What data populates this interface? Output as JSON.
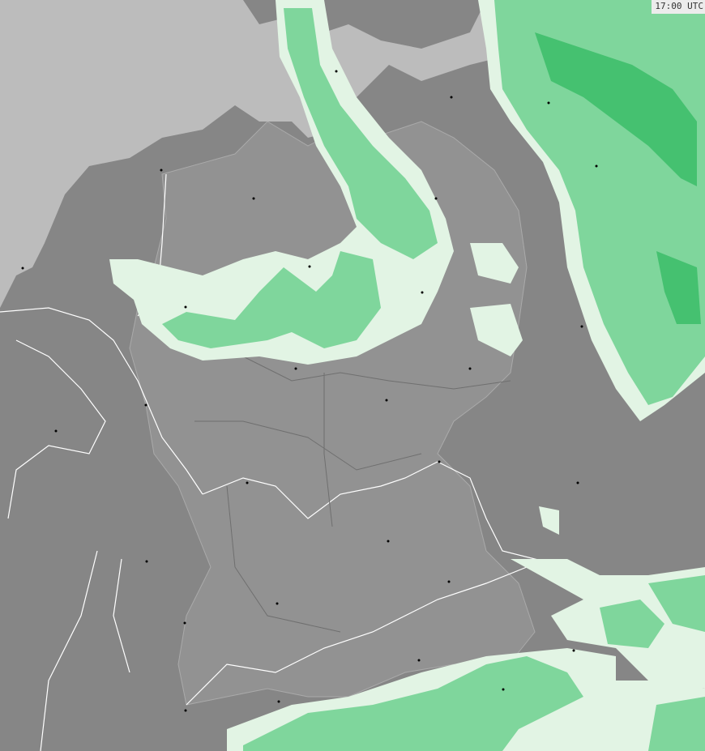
{
  "timestamp": "17:00 UTC",
  "colors": {
    "sea": "#bcbcbc",
    "land_outside": "#868686",
    "land_germany": "#929292",
    "precip_light": "#e2f4e4",
    "precip_moderate": "#7fd69c",
    "precip_heavy": "#45c170",
    "borders": "#ffffff"
  }
}
